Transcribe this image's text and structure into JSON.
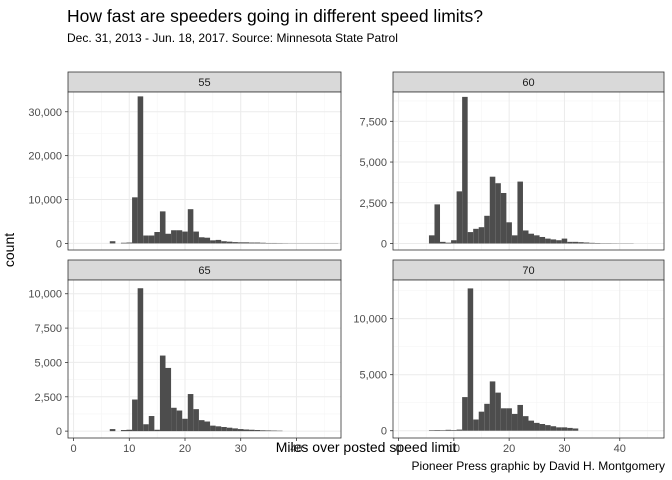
{
  "title": "How fast are speeders going in different speed limits?",
  "subtitle": "Dec. 31, 2013 - Jun. 18, 2017. Source: Minnesota State Patrol",
  "caption": "Pioneer Press graphic by David H. Montgomery",
  "colors": {
    "bar": "#4d4d4d",
    "strip": "#d9d9d9",
    "grid_major": "#ebebeb",
    "grid_minor": "#f5f5f5",
    "panel_border": "#333333",
    "text": "#000000",
    "tick_text": "#4d4d4d"
  },
  "chart_data": {
    "type": "bar",
    "facet_layout": "2x2",
    "xlabel": "Miles over posted speed limit",
    "ylabel": "count",
    "xlim": [
      -1,
      48
    ],
    "x_ticks": [
      0,
      10,
      20,
      30,
      40
    ],
    "bin_width": 1,
    "grid": true,
    "panels": [
      {
        "label": "55",
        "ylim": [
          -1500,
          34500
        ],
        "y_ticks": [
          0,
          10000,
          20000,
          30000
        ],
        "y_tick_labels": [
          "0",
          "10,000",
          "20,000",
          "30,000"
        ],
        "bins": [
          [
            7,
            500
          ],
          [
            9,
            150
          ],
          [
            10,
            200
          ],
          [
            11,
            10500
          ],
          [
            12,
            33500
          ],
          [
            13,
            1800
          ],
          [
            14,
            1800
          ],
          [
            15,
            2600
          ],
          [
            16,
            7300
          ],
          [
            17,
            2200
          ],
          [
            18,
            3000
          ],
          [
            19,
            3000
          ],
          [
            20,
            2700
          ],
          [
            21,
            7800
          ],
          [
            22,
            2700
          ],
          [
            23,
            1400
          ],
          [
            24,
            1300
          ],
          [
            25,
            700
          ],
          [
            26,
            800
          ],
          [
            27,
            500
          ],
          [
            28,
            400
          ],
          [
            29,
            300
          ],
          [
            30,
            250
          ],
          [
            31,
            250
          ],
          [
            32,
            200
          ],
          [
            33,
            200
          ],
          [
            34,
            150
          ],
          [
            35,
            100
          ],
          [
            36,
            100
          ],
          [
            37,
            80
          ],
          [
            38,
            60
          ],
          [
            39,
            40
          ],
          [
            40,
            30
          ],
          [
            41,
            20
          ],
          [
            42,
            20
          ],
          [
            43,
            15
          ],
          [
            44,
            10
          ],
          [
            45,
            10
          ],
          [
            46,
            10
          ],
          [
            47,
            5
          ]
        ]
      },
      {
        "label": "60",
        "ylim": [
          -400,
          9300
        ],
        "y_ticks": [
          0,
          2500,
          5000,
          7500
        ],
        "y_tick_labels": [
          "0",
          "2,500",
          "5,000",
          "7,500"
        ],
        "bins": [
          [
            6,
            500
          ],
          [
            7,
            2400
          ],
          [
            8,
            100
          ],
          [
            9,
            50
          ],
          [
            10,
            200
          ],
          [
            11,
            3200
          ],
          [
            12,
            9000
          ],
          [
            13,
            700
          ],
          [
            14,
            900
          ],
          [
            15,
            1000
          ],
          [
            16,
            1700
          ],
          [
            17,
            4100
          ],
          [
            18,
            3700
          ],
          [
            19,
            3100
          ],
          [
            20,
            1300
          ],
          [
            21,
            500
          ],
          [
            22,
            3800
          ],
          [
            23,
            800
          ],
          [
            24,
            600
          ],
          [
            25,
            500
          ],
          [
            26,
            400
          ],
          [
            27,
            300
          ],
          [
            28,
            250
          ],
          [
            29,
            200
          ],
          [
            30,
            300
          ],
          [
            31,
            100
          ],
          [
            32,
            100
          ],
          [
            33,
            80
          ],
          [
            34,
            60
          ],
          [
            35,
            40
          ],
          [
            36,
            30
          ],
          [
            37,
            20
          ],
          [
            38,
            20
          ],
          [
            39,
            15
          ],
          [
            40,
            10
          ],
          [
            41,
            8
          ],
          [
            42,
            5
          ]
        ]
      },
      {
        "label": "65",
        "ylim": [
          -500,
          11000
        ],
        "y_ticks": [
          0,
          2500,
          5000,
          7500,
          10000
        ],
        "y_tick_labels": [
          "0",
          "2,500",
          "5,000",
          "7,500",
          "10,000"
        ],
        "bins": [
          [
            7,
            150
          ],
          [
            9,
            80
          ],
          [
            10,
            100
          ],
          [
            11,
            2300
          ],
          [
            12,
            10400
          ],
          [
            13,
            500
          ],
          [
            14,
            1100
          ],
          [
            15,
            100
          ],
          [
            16,
            5500
          ],
          [
            17,
            4600
          ],
          [
            18,
            1700
          ],
          [
            19,
            1500
          ],
          [
            20,
            900
          ],
          [
            21,
            2700
          ],
          [
            22,
            1600
          ],
          [
            23,
            800
          ],
          [
            24,
            700
          ],
          [
            25,
            400
          ],
          [
            26,
            350
          ],
          [
            27,
            300
          ],
          [
            28,
            250
          ],
          [
            29,
            200
          ],
          [
            30,
            150
          ],
          [
            31,
            120
          ],
          [
            32,
            100
          ],
          [
            33,
            80
          ],
          [
            34,
            60
          ],
          [
            35,
            50
          ],
          [
            36,
            40
          ],
          [
            37,
            30
          ]
        ]
      },
      {
        "label": "70",
        "ylim": [
          -650,
          13450
        ],
        "y_ticks": [
          0,
          5000,
          10000
        ],
        "y_tick_labels": [
          "0",
          "5,000",
          "10,000"
        ],
        "bins": [
          [
            6,
            50
          ],
          [
            7,
            60
          ],
          [
            8,
            50
          ],
          [
            9,
            80
          ],
          [
            10,
            60
          ],
          [
            11,
            100
          ],
          [
            12,
            3000
          ],
          [
            13,
            12700
          ],
          [
            14,
            1000
          ],
          [
            15,
            1700
          ],
          [
            16,
            2400
          ],
          [
            17,
            4400
          ],
          [
            18,
            3400
          ],
          [
            19,
            2000
          ],
          [
            20,
            2000
          ],
          [
            21,
            1500
          ],
          [
            22,
            2300
          ],
          [
            23,
            1300
          ],
          [
            24,
            900
          ],
          [
            25,
            700
          ],
          [
            26,
            600
          ],
          [
            27,
            500
          ],
          [
            28,
            400
          ],
          [
            29,
            300
          ],
          [
            30,
            300
          ],
          [
            31,
            250
          ],
          [
            32,
            200
          ]
        ]
      }
    ]
  }
}
